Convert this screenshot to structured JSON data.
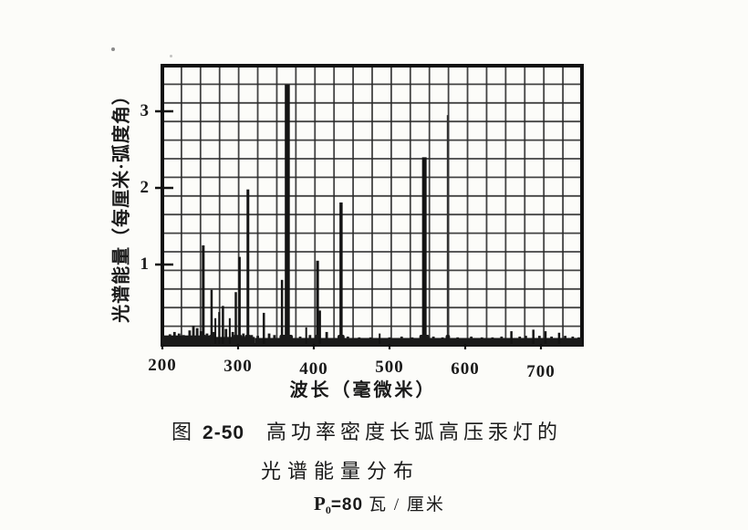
{
  "figure_caption": {
    "prefix": "图",
    "number": "2-50",
    "title_line1": "高功率密度长弧高压汞灯的",
    "title_line2": "光谱能量分布",
    "param": {
      "symbol": "P",
      "subscript": "0",
      "value": "=80",
      "unit": "瓦 / 厘米"
    }
  },
  "chart_data": {
    "type": "bar",
    "subtype": "emission-line-spectrum",
    "title": "高功率密度长弧高压汞灯的光谱能量分布",
    "condition": "P0=80 瓦/厘米",
    "xlabel": "波长（毫微米）",
    "ylabel": "光谱能量（每厘米·弧度角）",
    "x_ticks": [
      200,
      300,
      400,
      500,
      600,
      700
    ],
    "y_ticks": [
      1,
      2,
      3
    ],
    "xlim": [
      200,
      754
    ],
    "ylim": [
      0,
      3.65
    ],
    "grid": true,
    "lines": [
      {
        "nm": 254,
        "v": 1.25,
        "w": 3
      },
      {
        "nm": 265,
        "v": 0.67,
        "w": 2.5
      },
      {
        "nm": 270,
        "v": 0.3,
        "w": 2
      },
      {
        "nm": 275,
        "v": 0.38,
        "w": 2
      },
      {
        "nm": 280,
        "v": 0.46,
        "w": 2.5
      },
      {
        "nm": 289,
        "v": 0.3,
        "w": 2
      },
      {
        "nm": 297,
        "v": 0.64,
        "w": 2.5
      },
      {
        "nm": 302,
        "v": 1.1,
        "w": 2.5
      },
      {
        "nm": 313,
        "v": 1.98,
        "w": 3
      },
      {
        "nm": 334,
        "v": 0.37,
        "w": 2.5
      },
      {
        "nm": 358,
        "v": 0.8,
        "w": 2.5
      },
      {
        "nm": 365,
        "v": 3.35,
        "w": 5.5
      },
      {
        "nm": 390,
        "v": 0.18,
        "w": 2
      },
      {
        "nm": 405,
        "v": 1.05,
        "w": 3
      },
      {
        "nm": 408,
        "v": 0.4,
        "w": 2.5
      },
      {
        "nm": 436,
        "v": 1.81,
        "w": 3.5
      },
      {
        "nm": 487,
        "v": 0.1,
        "w": 2
      },
      {
        "nm": 546,
        "v": 2.4,
        "w": 5
      },
      {
        "nm": 577,
        "v": 2.95,
        "w": 2.2,
        "shade": "light"
      },
      {
        "nm": 661,
        "v": 0.13,
        "w": 2.5
      },
      {
        "nm": 690,
        "v": 0.15,
        "w": 2.5
      },
      {
        "nm": 706,
        "v": 0.13,
        "w": 2.5
      },
      {
        "nm": 724,
        "v": 0.11,
        "w": 2.5
      }
    ],
    "baseline_bumps": [
      [
        210,
        0.09
      ],
      [
        216,
        0.12
      ],
      [
        222,
        0.1
      ],
      [
        228,
        0.08
      ],
      [
        236,
        0.14
      ],
      [
        241,
        0.2
      ],
      [
        246,
        0.17
      ],
      [
        251,
        0.13
      ],
      [
        259,
        0.1
      ],
      [
        268,
        0.12
      ],
      [
        284,
        0.16
      ],
      [
        293,
        0.12
      ],
      [
        307,
        0.1
      ],
      [
        318,
        0.08
      ],
      [
        326,
        0.07
      ],
      [
        341,
        0.1
      ],
      [
        348,
        0.08
      ],
      [
        370,
        0.07
      ],
      [
        382,
        0.06
      ],
      [
        395,
        0.08
      ],
      [
        417,
        0.12
      ],
      [
        445,
        0.06
      ],
      [
        460,
        0.05
      ],
      [
        475,
        0.05
      ],
      [
        500,
        0.05
      ],
      [
        516,
        0.06
      ],
      [
        530,
        0.05
      ],
      [
        558,
        0.06
      ],
      [
        570,
        0.05
      ],
      [
        590,
        0.05
      ],
      [
        608,
        0.06
      ],
      [
        622,
        0.05
      ],
      [
        636,
        0.05
      ],
      [
        648,
        0.06
      ],
      [
        672,
        0.06
      ],
      [
        680,
        0.07
      ],
      [
        698,
        0.07
      ],
      [
        714,
        0.06
      ],
      [
        732,
        0.07
      ],
      [
        742,
        0.06
      ],
      [
        750,
        0.05
      ]
    ],
    "base_bands": [
      [
        200,
        263,
        0.075
      ],
      [
        263,
        322,
        0.055
      ],
      [
        322,
        754,
        0.042
      ]
    ]
  },
  "colors": {
    "ink": "#1a1a1a",
    "grid": "#2a2a2a",
    "paper": "#fcfcf9",
    "light_line": "#333333"
  }
}
